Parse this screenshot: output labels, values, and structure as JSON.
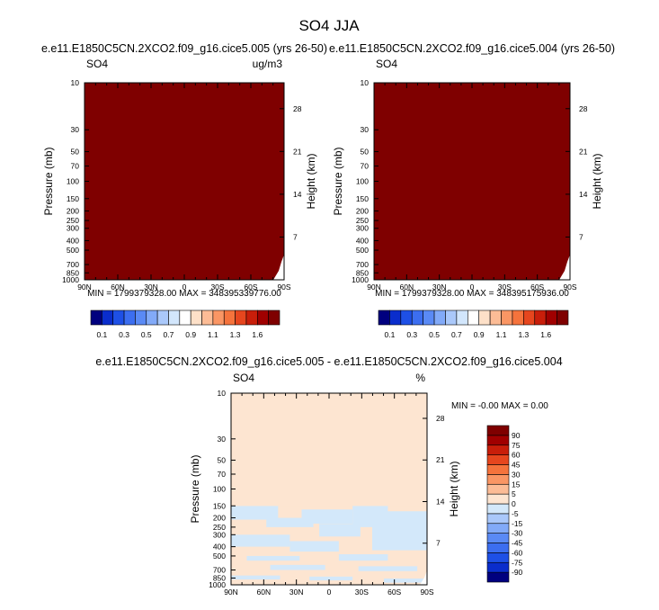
{
  "title": "SO4 JJA",
  "colors": {
    "dark_red": "#7f0000",
    "fill_light": "#fde5d1",
    "negative_light": "#d3e8fa",
    "axis": "#000000"
  },
  "chart_data": [
    {
      "type": "heatmap",
      "title": "e.e11.E1850C5CN.2XCO2.f09_g16.cice5.005 (yrs 26-50)",
      "left_label": "SO4",
      "right_label": "ug/m3",
      "ylabel": "Pressure (mb)",
      "y2label": "Height (km)",
      "yscale": "log",
      "ylim": [
        1000,
        10
      ],
      "yticks": [
        "10",
        "30",
        "50",
        "70",
        "100",
        "150",
        "200",
        "250",
        "300",
        "400",
        "500",
        "700",
        "850",
        "1000"
      ],
      "y2ticks": [
        "28",
        "21",
        "14",
        "7"
      ],
      "xticks": [
        "90N",
        "60N",
        "30N",
        "0",
        "30S",
        "60S",
        "90S"
      ],
      "stats": "MIN = 1799379328.00   MAX = 348395339776.00",
      "fill": "uniform maximum level (dark red)",
      "colorbar": {
        "orientation": "horizontal",
        "colors": [
          "#00007f",
          "#0a2dcc",
          "#1e50e6",
          "#3c6ef0",
          "#5a8af5",
          "#82aaf8",
          "#aac8fa",
          "#d2e6fc",
          "#ffffff",
          "#fde0c8",
          "#fcbc96",
          "#fa9664",
          "#f5733c",
          "#e6461e",
          "#c81e0a",
          "#a00000",
          "#7f0000"
        ],
        "labels": [
          "0.1",
          "0.3",
          "0.5",
          "0.7",
          "0.9",
          "1.1",
          "1.3",
          "1.6"
        ]
      }
    },
    {
      "type": "heatmap",
      "title": "e.e11.E1850C5CN.2XCO2.f09_g16.cice5.004 (yrs 26-50)",
      "left_label": "SO4",
      "right_label": "",
      "ylabel": "Pressure (mb)",
      "y2label": "Height (km)",
      "yscale": "log",
      "ylim": [
        1000,
        10
      ],
      "yticks": [
        "10",
        "30",
        "50",
        "70",
        "100",
        "150",
        "200",
        "250",
        "300",
        "400",
        "500",
        "700",
        "850",
        "1000"
      ],
      "y2ticks": [
        "28",
        "21",
        "14",
        "7"
      ],
      "xticks": [
        "90N",
        "60N",
        "30N",
        "0",
        "30S",
        "60S",
        "90S"
      ],
      "stats": "MIN = 1799379328.00   MAX = 348395175936.00",
      "fill": "uniform maximum level (dark red)",
      "colorbar": {
        "orientation": "horizontal",
        "colors": [
          "#00007f",
          "#0a2dcc",
          "#1e50e6",
          "#3c6ef0",
          "#5a8af5",
          "#82aaf8",
          "#aac8fa",
          "#d2e6fc",
          "#ffffff",
          "#fde0c8",
          "#fcbc96",
          "#fa9664",
          "#f5733c",
          "#e6461e",
          "#c81e0a",
          "#a00000",
          "#7f0000"
        ],
        "labels": [
          "0.1",
          "0.3",
          "0.5",
          "0.7",
          "0.9",
          "1.1",
          "1.3",
          "1.6"
        ]
      }
    },
    {
      "type": "heatmap",
      "title": "e.e11.E1850C5CN.2XCO2.f09_g16.cice5.005 - e.e11.E1850C5CN.2XCO2.f09_g16.cice5.004",
      "left_label": "SO4",
      "right_label": "%",
      "ylabel": "Pressure (mb)",
      "y2label": "Height (km)",
      "yscale": "log",
      "ylim": [
        1000,
        10
      ],
      "yticks": [
        "10",
        "30",
        "50",
        "70",
        "100",
        "150",
        "200",
        "250",
        "300",
        "400",
        "500",
        "700",
        "850",
        "1000"
      ],
      "y2ticks": [
        "28",
        "21",
        "14",
        "7"
      ],
      "xticks": [
        "90N",
        "60N",
        "30N",
        "0",
        "30S",
        "60S",
        "90S"
      ],
      "stats": "MIN =  -0.00   MAX =    0.00",
      "fill": "mostly 0 to 5 (light peach) with -5 to 0 (light blue) patches below about 150 mb",
      "colorbar": {
        "orientation": "vertical",
        "colors": [
          "#00007f",
          "#0a2dcc",
          "#1e50e6",
          "#3c6ef0",
          "#5a8af5",
          "#82aaf8",
          "#aac8fa",
          "#d3e8fa",
          "#fde5d1",
          "#fcbc96",
          "#fa9664",
          "#f5733c",
          "#e6461e",
          "#c81e0a",
          "#a00000",
          "#7f0000"
        ],
        "labels": [
          "-90",
          "-75",
          "-60",
          "-45",
          "-30",
          "-15",
          "-5",
          "0",
          "5",
          "15",
          "30",
          "45",
          "60",
          "75",
          "90"
        ]
      }
    }
  ]
}
